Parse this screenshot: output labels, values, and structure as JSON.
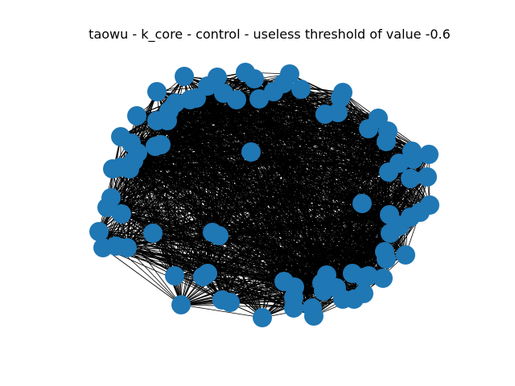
{
  "title": "taowu - k_core - control - useless threshold of value -0.6",
  "graph": {
    "node_color": "#1f77b4",
    "edge_color": "#000000",
    "background": "#ffffff",
    "edge_density": "dense"
  }
}
